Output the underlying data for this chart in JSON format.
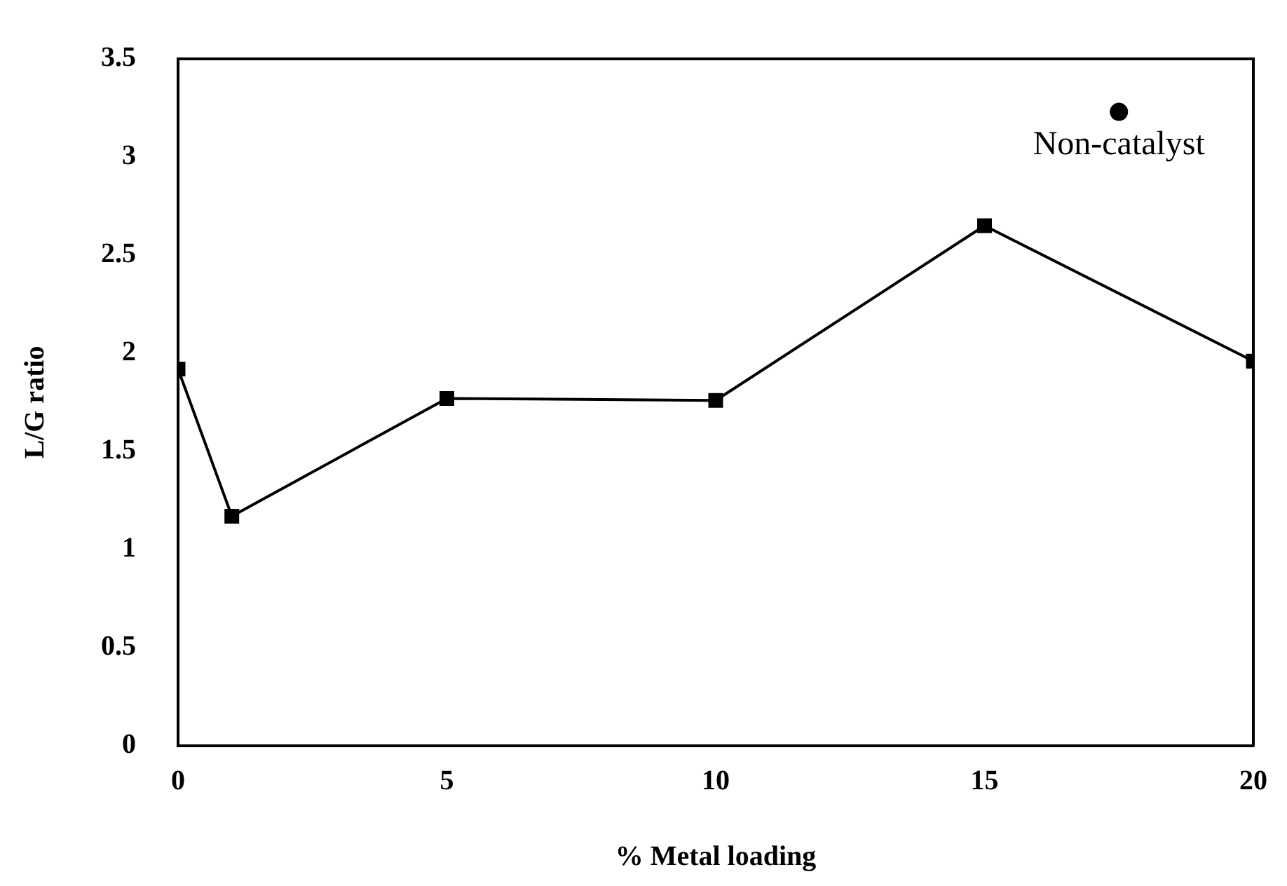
{
  "chart_data": {
    "type": "line",
    "xlabel": "% Metal loading",
    "ylabel": "L/G ratio",
    "xlim": [
      0,
      20
    ],
    "xticks": [
      0,
      5,
      10,
      15,
      20
    ],
    "ylim": [
      0,
      3.5
    ],
    "yticks": [
      0,
      0.5,
      1,
      1.5,
      2,
      2.5,
      3,
      3.5
    ],
    "grid": false,
    "legend": false,
    "marker": "square",
    "series": [
      {
        "color": "#000000",
        "x": [
          0,
          1,
          5,
          10,
          15,
          20
        ],
        "values": [
          1.92,
          1.17,
          1.77,
          1.76,
          2.65,
          1.96
        ]
      },
      {
        "type": "scatter",
        "name": "Non-catalyst",
        "color": "#000000",
        "marker": "circle",
        "x": [
          17.5
        ],
        "values": [
          3.23
        ]
      }
    ]
  }
}
